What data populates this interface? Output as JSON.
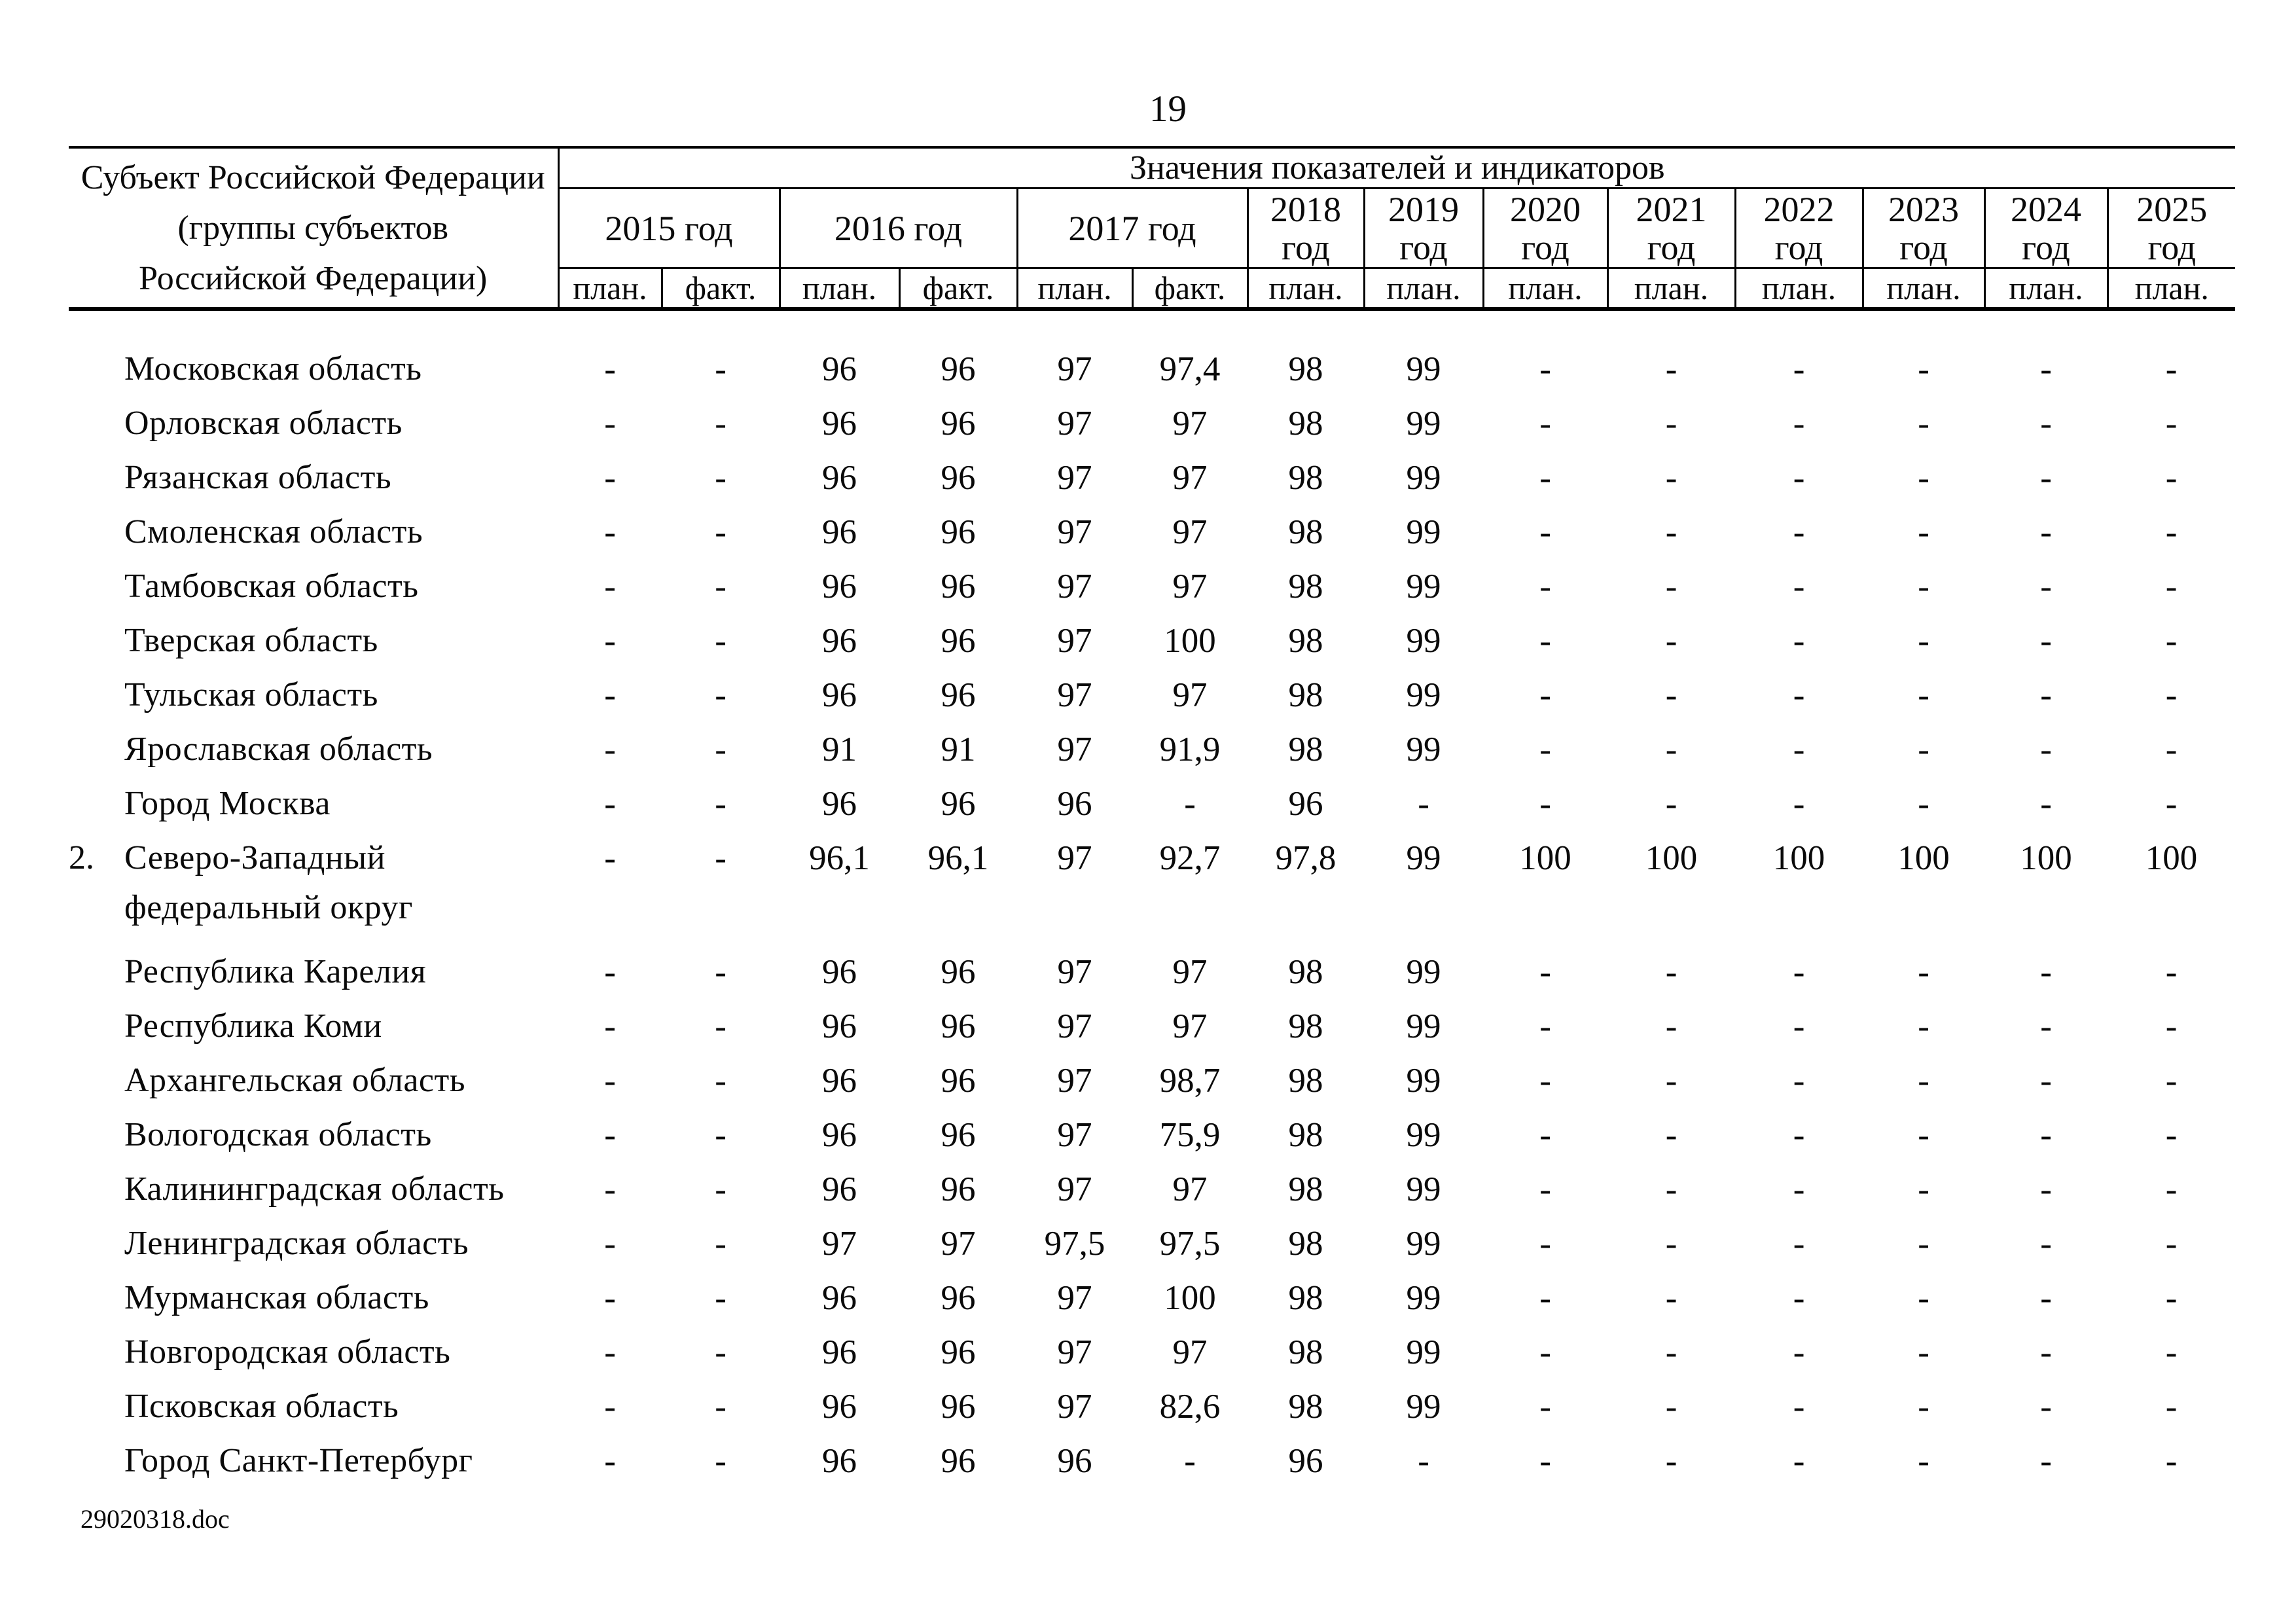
{
  "page": {
    "number": "19",
    "footer_filename": "29020318.doc"
  },
  "table": {
    "subject_header": "Субъект Российской Федерации\n(группы субъектов\nРоссийской Федерации)",
    "values_header": "Значения показателей и индикаторов",
    "year_groups": [
      {
        "label": "2015 год",
        "span": 2
      },
      {
        "label": "2016 год",
        "span": 2
      },
      {
        "label": "2017 год",
        "span": 2
      },
      {
        "label": "2018 год",
        "span": 1
      },
      {
        "label": "2019 год",
        "span": 1
      },
      {
        "label": "2020 год",
        "span": 1
      },
      {
        "label": "2021 год",
        "span": 1
      },
      {
        "label": "2022 год",
        "span": 1
      },
      {
        "label": "2023 год",
        "span": 1
      },
      {
        "label": "2024 год",
        "span": 1
      },
      {
        "label": "2025 год",
        "span": 1
      }
    ],
    "plan_fact_row": [
      "план.",
      "факт.",
      "план.",
      "факт.",
      "план.",
      "факт.",
      "план.",
      "план.",
      "план.",
      "план.",
      "план.",
      "план.",
      "план.",
      "план."
    ],
    "rows": [
      {
        "num": "",
        "type": "region",
        "name": "Московская область",
        "values": [
          "-",
          "-",
          "96",
          "96",
          "97",
          "97,4",
          "98",
          "99",
          "-",
          "-",
          "-",
          "-",
          "-",
          "-"
        ]
      },
      {
        "num": "",
        "type": "region",
        "name": "Орловская область",
        "values": [
          "-",
          "-",
          "96",
          "96",
          "97",
          "97",
          "98",
          "99",
          "-",
          "-",
          "-",
          "-",
          "-",
          "-"
        ]
      },
      {
        "num": "",
        "type": "region",
        "name": "Рязанская область",
        "values": [
          "-",
          "-",
          "96",
          "96",
          "97",
          "97",
          "98",
          "99",
          "-",
          "-",
          "-",
          "-",
          "-",
          "-"
        ]
      },
      {
        "num": "",
        "type": "region",
        "name": "Смоленская область",
        "values": [
          "-",
          "-",
          "96",
          "96",
          "97",
          "97",
          "98",
          "99",
          "-",
          "-",
          "-",
          "-",
          "-",
          "-"
        ]
      },
      {
        "num": "",
        "type": "region",
        "name": "Тамбовская область",
        "values": [
          "-",
          "-",
          "96",
          "96",
          "97",
          "97",
          "98",
          "99",
          "-",
          "-",
          "-",
          "-",
          "-",
          "-"
        ]
      },
      {
        "num": "",
        "type": "region",
        "name": "Тверская область",
        "values": [
          "-",
          "-",
          "96",
          "96",
          "97",
          "100",
          "98",
          "99",
          "-",
          "-",
          "-",
          "-",
          "-",
          "-"
        ]
      },
      {
        "num": "",
        "type": "region",
        "name": "Тульская область",
        "values": [
          "-",
          "-",
          "96",
          "96",
          "97",
          "97",
          "98",
          "99",
          "-",
          "-",
          "-",
          "-",
          "-",
          "-"
        ]
      },
      {
        "num": "",
        "type": "region",
        "name": "Ярославская область",
        "values": [
          "-",
          "-",
          "91",
          "91",
          "97",
          "91,9",
          "98",
          "99",
          "-",
          "-",
          "-",
          "-",
          "-",
          "-"
        ]
      },
      {
        "num": "",
        "type": "region",
        "name": "Город Москва",
        "values": [
          "-",
          "-",
          "96",
          "96",
          "96",
          "-",
          "96",
          "-",
          "-",
          "-",
          "-",
          "-",
          "-",
          "-"
        ]
      },
      {
        "num": "2.",
        "type": "district",
        "name": "Северо-Западный федеральный округ",
        "values": [
          "-",
          "-",
          "96,1",
          "96,1",
          "97",
          "92,7",
          "97,8",
          "99",
          "100",
          "100",
          "100",
          "100",
          "100",
          "100"
        ]
      },
      {
        "num": "",
        "type": "region",
        "name": "Республика Карелия",
        "values": [
          "-",
          "-",
          "96",
          "96",
          "97",
          "97",
          "98",
          "99",
          "-",
          "-",
          "-",
          "-",
          "-",
          "-"
        ]
      },
      {
        "num": "",
        "type": "region",
        "name": "Республика Коми",
        "values": [
          "-",
          "-",
          "96",
          "96",
          "97",
          "97",
          "98",
          "99",
          "-",
          "-",
          "-",
          "-",
          "-",
          "-"
        ]
      },
      {
        "num": "",
        "type": "region",
        "name": "Архангельская область",
        "values": [
          "-",
          "-",
          "96",
          "96",
          "97",
          "98,7",
          "98",
          "99",
          "-",
          "-",
          "-",
          "-",
          "-",
          "-"
        ]
      },
      {
        "num": "",
        "type": "region",
        "name": "Вологодская область",
        "values": [
          "-",
          "-",
          "96",
          "96",
          "97",
          "75,9",
          "98",
          "99",
          "-",
          "-",
          "-",
          "-",
          "-",
          "-"
        ]
      },
      {
        "num": "",
        "type": "region",
        "name": "Калининградская область",
        "values": [
          "-",
          "-",
          "96",
          "96",
          "97",
          "97",
          "98",
          "99",
          "-",
          "-",
          "-",
          "-",
          "-",
          "-"
        ]
      },
      {
        "num": "",
        "type": "region",
        "name": "Ленинградская область",
        "values": [
          "-",
          "-",
          "97",
          "97",
          "97,5",
          "97,5",
          "98",
          "99",
          "-",
          "-",
          "-",
          "-",
          "-",
          "-"
        ]
      },
      {
        "num": "",
        "type": "region",
        "name": "Мурманская область",
        "values": [
          "-",
          "-",
          "96",
          "96",
          "97",
          "100",
          "98",
          "99",
          "-",
          "-",
          "-",
          "-",
          "-",
          "-"
        ]
      },
      {
        "num": "",
        "type": "region",
        "name": "Новгородская область",
        "values": [
          "-",
          "-",
          "96",
          "96",
          "97",
          "97",
          "98",
          "99",
          "-",
          "-",
          "-",
          "-",
          "-",
          "-"
        ]
      },
      {
        "num": "",
        "type": "region",
        "name": "Псковская область",
        "values": [
          "-",
          "-",
          "96",
          "96",
          "97",
          "82,6",
          "98",
          "99",
          "-",
          "-",
          "-",
          "-",
          "-",
          "-"
        ]
      },
      {
        "num": "",
        "type": "region",
        "name": "Город Санкт-Петербург",
        "values": [
          "-",
          "-",
          "96",
          "96",
          "96",
          "-",
          "96",
          "-",
          "-",
          "-",
          "-",
          "-",
          "-",
          "-"
        ]
      }
    ]
  }
}
